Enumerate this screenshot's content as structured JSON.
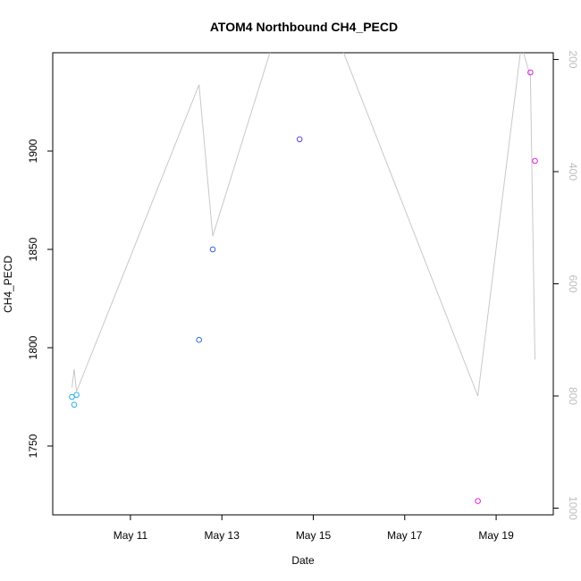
{
  "chart_data": {
    "type": "scatter",
    "title": "ATOM4 Northbound CH4_PECD",
    "xlabel": "Date",
    "ylabel": "CH4_PECD",
    "x_ticks": [
      "May 11",
      "May 13",
      "May 15",
      "May 17",
      "May 19"
    ],
    "x_tick_values": [
      11,
      13,
      15,
      17,
      19
    ],
    "xlim": [
      9.3,
      20.25
    ],
    "ylim": [
      1715,
      1950
    ],
    "y_ticks": [
      1750,
      1800,
      1850,
      1900
    ],
    "y2_ticks": [
      200,
      400,
      600,
      800,
      1000
    ],
    "y2lim": [
      1012,
      188
    ],
    "grid": false,
    "series": [
      {
        "type": "points",
        "points": [
          {
            "x": 9.72,
            "y": 1775,
            "color": "#29aee8"
          },
          {
            "x": 9.77,
            "y": 1771,
            "color": "#29aee8"
          },
          {
            "x": 9.82,
            "y": 1776,
            "color": "#29aee8"
          },
          {
            "x": 12.5,
            "y": 1804,
            "color": "#2f6fd8"
          },
          {
            "x": 12.8,
            "y": 1850,
            "color": "#3a60e0"
          },
          {
            "x": 14.7,
            "y": 1906,
            "color": "#5b3fe0"
          },
          {
            "x": 18.6,
            "y": 1722,
            "color": "#e020d8"
          },
          {
            "x": 19.75,
            "y": 1940,
            "color": "#e020d8"
          },
          {
            "x": 19.85,
            "y": 1895,
            "color": "#e020d8"
          }
        ]
      },
      {
        "type": "line",
        "axis": "right",
        "color": "#c8c8c8",
        "points": [
          {
            "x": 9.72,
            "y": 785
          },
          {
            "x": 9.77,
            "y": 752
          },
          {
            "x": 9.82,
            "y": 792
          },
          {
            "x": 12.5,
            "y": 245
          },
          {
            "x": 12.8,
            "y": 515
          },
          {
            "x": 14.1,
            "y": 175
          },
          {
            "x": 15.6,
            "y": 175
          },
          {
            "x": 18.6,
            "y": 800
          },
          {
            "x": 19.55,
            "y": 175
          },
          {
            "x": 19.75,
            "y": 230
          },
          {
            "x": 19.85,
            "y": 735
          }
        ]
      }
    ]
  }
}
